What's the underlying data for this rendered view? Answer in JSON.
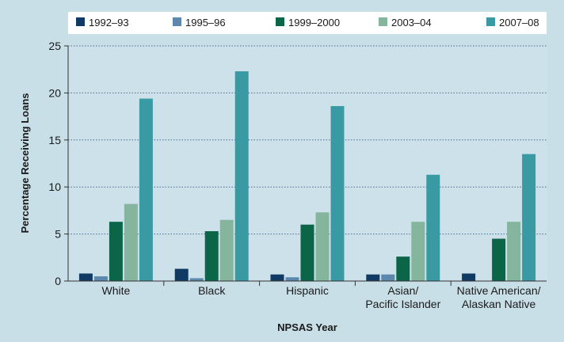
{
  "chart_data": {
    "type": "bar",
    "title": "",
    "xlabel": "NPSAS Year",
    "ylabel": "Percentage Receiving Loans",
    "ylim": [
      0,
      25
    ],
    "yticks": [
      0,
      5,
      10,
      15,
      20,
      25
    ],
    "grid": true,
    "legend_position": "top",
    "categories": [
      [
        "White"
      ],
      [
        "Black"
      ],
      [
        "Hispanic"
      ],
      [
        "Asian/",
        "Pacific Islander"
      ],
      [
        "Native American/",
        "Alaskan Native"
      ]
    ],
    "series": [
      {
        "name": "1992–93",
        "color": "#103a64",
        "values": [
          0.8,
          1.3,
          0.7,
          0.7,
          0.8
        ]
      },
      {
        "name": "1995–96",
        "color": "#5b88ac",
        "values": [
          0.5,
          0.3,
          0.4,
          0.7,
          0.0
        ]
      },
      {
        "name": "1999–2000",
        "color": "#0b6648",
        "values": [
          6.3,
          5.3,
          6.0,
          2.6,
          4.5
        ]
      },
      {
        "name": "2003–04",
        "color": "#86b59e",
        "values": [
          8.2,
          6.5,
          7.3,
          6.3,
          6.3
        ]
      },
      {
        "name": "2007–08",
        "color": "#3a9aa4",
        "values": [
          19.4,
          22.3,
          18.6,
          11.3,
          13.5
        ]
      }
    ]
  }
}
